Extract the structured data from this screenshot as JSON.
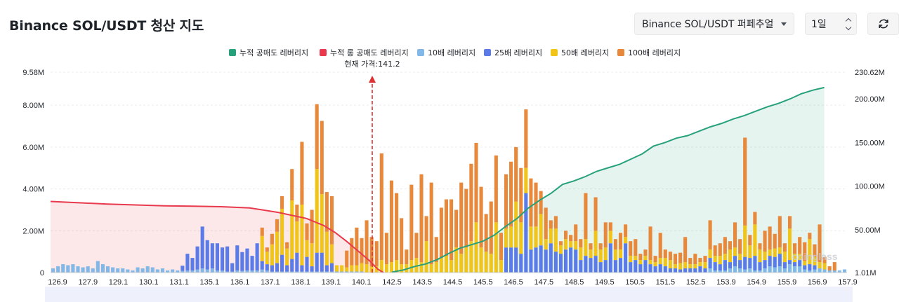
{
  "header": {
    "title": "Binance SOL/USDT 청산 지도",
    "exchange_select": "Binance SOL/USDT 퍼페추얼",
    "interval_select": "1일",
    "refresh_icon": "refresh-icon"
  },
  "colors": {
    "short_cum": "#26a17b",
    "long_cum": "#e8394d",
    "lev10": "#82b8e8",
    "lev25": "#5b7be8",
    "lev50": "#f0c419",
    "lev100": "#e8883a",
    "current_price": "#e03131"
  },
  "chart_data": {
    "type": "bar",
    "title": "",
    "current_price_label": "현재 가격:141.2",
    "current_price": 141.2,
    "watermark": "coinglass",
    "legend": [
      {
        "key": "short_cum",
        "label": "누적 공매도 레버리지"
      },
      {
        "key": "long_cum",
        "label": "누적 롱 공매도 레버리지"
      },
      {
        "key": "lev10",
        "label": "10배 레버리지"
      },
      {
        "key": "lev25",
        "label": "25배 레버리지"
      },
      {
        "key": "lev50",
        "label": "50배 레버리지"
      },
      {
        "key": "lev100",
        "label": "100배 레버리지"
      }
    ],
    "x_tick_labels": [
      "126.9",
      "127.9",
      "129.1",
      "130.1",
      "131.1",
      "135.1",
      "136.1",
      "137.1",
      "138.1",
      "139.1",
      "140.1",
      "142.5",
      "143.5",
      "144.5",
      "145.5",
      "146.5",
      "147.5",
      "148.5",
      "149.5",
      "150.5",
      "151.5",
      "152.5",
      "153.9",
      "154.9",
      "155.9",
      "156.9",
      "157.9"
    ],
    "y_left": {
      "ticks": [
        "0",
        "2.00M",
        "4.00M",
        "6.00M",
        "8.00M",
        "9.58M"
      ],
      "max": 9.58
    },
    "y_right": {
      "ticks": [
        "1.01M",
        "50.00M",
        "100.00M",
        "150.00M",
        "200.00M",
        "230.62M"
      ],
      "min": 1.01,
      "max": 230.62
    },
    "series": [
      {
        "name": "10배 레버리지",
        "values": [
          0.2,
          0.3,
          0.4,
          0.35,
          0.4,
          0.3,
          0.25,
          0.3,
          0.2,
          0.55,
          0.4,
          0.3,
          0.25,
          0.2,
          0.2,
          0.15,
          0.1,
          0.25,
          0.2,
          0.3,
          0.25,
          0.15,
          0.2,
          0.1,
          0.15,
          0.1,
          0.08,
          0.1,
          0.1,
          0.15,
          0.2,
          0.15,
          0.2,
          0.1,
          0.1,
          0.05,
          0.05,
          0.1,
          0.08,
          0.1,
          0.1,
          0.1,
          0.15,
          0.1,
          0.05,
          0.05,
          0.05,
          0.05,
          0.05,
          0.05,
          0.05,
          0.05,
          0.05,
          0.05,
          0.05,
          0.05,
          0.05,
          0.05,
          0.05,
          0.05,
          0.05,
          0.05,
          0.05,
          0,
          0,
          0,
          0,
          0,
          0,
          0,
          0,
          0,
          0,
          0,
          0,
          0,
          0,
          0,
          0,
          0,
          0,
          0,
          0,
          0,
          0,
          0,
          0,
          0,
          0,
          0,
          0,
          0,
          0,
          0,
          0,
          0,
          0,
          0,
          0,
          0,
          0,
          0,
          0,
          0,
          0,
          0,
          0,
          0,
          0,
          0,
          0,
          0,
          0,
          0,
          0,
          0,
          0,
          0,
          0,
          0,
          0,
          0,
          0,
          0,
          0,
          0,
          0,
          0,
          0,
          0,
          0,
          0,
          0.2,
          0.1,
          0.1,
          0.1,
          0.2,
          0.3,
          0.2,
          0.15,
          0.2,
          0.1,
          0.1,
          0.2,
          0.3,
          0.25,
          0.3,
          0.2,
          0.4,
          0.3,
          0.3,
          0.15,
          0.1,
          0.15,
          0.2,
          0.15,
          0.1,
          0.1,
          0.1,
          0.15
        ]
      },
      {
        "name": "25배 레버리지",
        "values": [
          0,
          0,
          0,
          0,
          0,
          0,
          0,
          0,
          0,
          0,
          0,
          0,
          0,
          0,
          0,
          0,
          0,
          0,
          0,
          0,
          0,
          0,
          0,
          0,
          0,
          0,
          0.25,
          0.8,
          0.6,
          1.1,
          2.0,
          1.4,
          1.2,
          1.3,
          1.1,
          1.2,
          0.4,
          1.2,
          0.9,
          1.05,
          0.7,
          1.3,
          0.4,
          0.3,
          0.3,
          0.4,
          0.8,
          0.3,
          0.6,
          0.9,
          0.3,
          0.7,
          0.25,
          0.9,
          0.9,
          0.3,
          0.4,
          0,
          0,
          0,
          0,
          0,
          0,
          0,
          0,
          0,
          0,
          0,
          0,
          0,
          0,
          0,
          0,
          0,
          0,
          0,
          0,
          0,
          0,
          0,
          0,
          0,
          0,
          0,
          0,
          0,
          0,
          0,
          0,
          0,
          0,
          1.2,
          1.2,
          1.2,
          0.9,
          3.8,
          1.1,
          1.2,
          1.3,
          1.1,
          1.4,
          1.0,
          0.9,
          1.1,
          1.2,
          1.1,
          0.6,
          0.8,
          0.7,
          0.8,
          0.5,
          0.6,
          1.4,
          0.6,
          0.7,
          1.4,
          0.5,
          0.6,
          0.4,
          0.6,
          0.4,
          0.3,
          0.4,
          0.3,
          0.2,
          0.2,
          0.15,
          0.2,
          0.2,
          0.2,
          0.3,
          0.2,
          0.5,
          0.4,
          0.3,
          0.5,
          0.3,
          0.5,
          0.4,
          0.6,
          0.5,
          0.7,
          0.4,
          0.4,
          0.5,
          0.5,
          0.6,
          0.3,
          0.2,
          0.2,
          0.3,
          0.2,
          0.3,
          0.2
        ]
      },
      {
        "name": "50배 레버리지",
        "values": [
          0,
          0,
          0,
          0,
          0,
          0,
          0,
          0,
          0,
          0,
          0,
          0,
          0,
          0,
          0,
          0,
          0,
          0,
          0,
          0,
          0,
          0,
          0,
          0,
          0,
          0,
          0,
          0,
          0,
          0,
          0,
          0,
          0,
          0,
          0,
          0,
          0,
          0,
          0,
          0,
          0,
          0,
          1.2,
          0.6,
          1.0,
          1.5,
          2.2,
          0.8,
          2.8,
          1.5,
          2.9,
          0.8,
          1.1,
          4.0,
          2.8,
          1.6,
          0.9,
          0.3,
          0.3,
          0.2,
          0.3,
          0.3,
          0.4,
          0.4,
          0.3,
          0.3,
          0.6,
          0.4,
          0.5,
          0.6,
          0.4,
          0.4,
          0.6,
          0.7,
          0.5,
          1.5,
          0.4,
          0.5,
          0.7,
          0.8,
          0.6,
          1.2,
          0.9,
          1.2,
          1.5,
          2.4,
          1.2,
          1.0,
          0.9,
          2.4,
          0.6,
          0.9,
          1.0,
          2.2,
          1.5,
          1.2,
          1.1,
          1.0,
          1.5,
          0.5,
          0.7,
          1.1,
          0.4,
          0.5,
          0.3,
          0.4,
          0.6,
          0.8,
          0.4,
          1.2,
          0.6,
          0.6,
          0.6,
          0.5,
          0.4,
          0.3,
          0.3,
          0.2,
          0.2,
          0.2,
          0.2,
          0.2,
          0.3,
          0.4,
          0.4,
          0.2,
          0.3,
          0.3,
          0.2,
          0.2,
          0.2,
          0.3,
          0.4,
          0.3,
          0.4,
          0.3,
          0.6,
          0.4,
          0.3,
          1.5,
          0.6,
          1.5,
          0.6,
          0.4,
          0.3,
          0.4,
          0.3,
          0.5,
          1.5,
          0.4,
          0.3,
          0.2,
          1.2,
          0.4,
          0.3,
          0.3
        ]
      },
      {
        "name": "100배 레버리지",
        "values": [
          0,
          0,
          0,
          0,
          0,
          0,
          0,
          0,
          0,
          0,
          0,
          0,
          0,
          0,
          0,
          0,
          0,
          0,
          0,
          0,
          0,
          0,
          0,
          0,
          0,
          0,
          0,
          0,
          0,
          0,
          0,
          0,
          0,
          0,
          0,
          0,
          0,
          0,
          0,
          0,
          0,
          0,
          0.4,
          0.2,
          0.5,
          0.6,
          0.6,
          0.3,
          1.5,
          0.8,
          3.0,
          0.8,
          1.6,
          3.1,
          3.5,
          1.9,
          2.3,
          0,
          0,
          0.8,
          1.3,
          1.8,
          1.2,
          2.1,
          1.4,
          1.2,
          5.1,
          1.5,
          3.9,
          3.2,
          2.2,
          0.7,
          3.6,
          1.2,
          4.2,
          1.2,
          3.9,
          1.2,
          2.4,
          2.7,
          2.9,
          1.8,
          3.4,
          2.8,
          3.7,
          3.8,
          2.9,
          1.8,
          2.5,
          3.2,
          1.3,
          2.6,
          3.1,
          2.6,
          2.6,
          2.8,
          2.3,
          2.1,
          1.1,
          1.5,
          0.4,
          0.6,
          0.2,
          0.4,
          0.3,
          0.8,
          0.4,
          2.2,
          0.3,
          1.6,
          0.3,
          1.2,
          0.4,
          0.5,
          0.8,
          0.6,
          0.7,
          0.8,
          0.3,
          0.3,
          1.6,
          0.3,
          1.2,
          0.4,
          0.4,
          0.5,
          0.5,
          1.2,
          0.3,
          0.5,
          0.2,
          0.3,
          1.4,
          0.5,
          0.6,
          0.8,
          0.4,
          1.2,
          0.7,
          4.2,
          0.5,
          0.6,
          0.3,
          1.0,
          1.1,
          0.7,
          1.5,
          0.4,
          0.6,
          0.5,
          0.8,
          0.9,
          0.3,
          0.6,
          1.8,
          0.3,
          0.2,
          0.4
        ]
      },
      {
        "name": "누적 롱 공매도 레버리지",
        "axis": "right",
        "points": [
          [
            0,
            82.5
          ],
          [
            0.05,
            81
          ],
          [
            0.1,
            79.5
          ],
          [
            0.15,
            78.5
          ],
          [
            0.2,
            77.5
          ],
          [
            0.25,
            77
          ],
          [
            0.3,
            76.5
          ],
          [
            0.35,
            75
          ],
          [
            0.4,
            70
          ],
          [
            0.45,
            63
          ],
          [
            0.48,
            55
          ],
          [
            0.5,
            47
          ],
          [
            0.52,
            37
          ],
          [
            0.54,
            26
          ],
          [
            0.56,
            15
          ],
          [
            0.575,
            5
          ],
          [
            0.585,
            1
          ]
        ]
      },
      {
        "name": "누적 공매도 레버리지",
        "axis": "right",
        "points": [
          [
            0.6,
            1.5
          ],
          [
            0.62,
            4
          ],
          [
            0.64,
            8
          ],
          [
            0.66,
            11
          ],
          [
            0.68,
            16
          ],
          [
            0.7,
            23
          ],
          [
            0.72,
            29
          ],
          [
            0.74,
            33
          ],
          [
            0.76,
            37
          ],
          [
            0.78,
            44
          ],
          [
            0.8,
            54
          ],
          [
            0.82,
            63
          ],
          [
            0.84,
            75
          ],
          [
            0.86,
            84
          ],
          [
            0.88,
            92
          ],
          [
            0.9,
            102
          ],
          [
            0.92,
            106
          ],
          [
            0.94,
            111
          ],
          [
            0.96,
            117
          ],
          [
            0.98,
            121
          ],
          [
            1.0,
            125
          ],
          [
            1.02,
            131
          ],
          [
            1.04,
            137
          ],
          [
            1.06,
            146
          ],
          [
            1.08,
            150
          ],
          [
            1.1,
            155
          ],
          [
            1.12,
            158
          ],
          [
            1.14,
            163
          ],
          [
            1.16,
            168
          ],
          [
            1.18,
            172
          ],
          [
            1.2,
            177
          ],
          [
            1.22,
            181
          ],
          [
            1.24,
            186
          ],
          [
            1.26,
            191
          ],
          [
            1.28,
            195
          ],
          [
            1.3,
            200
          ],
          [
            1.32,
            206
          ],
          [
            1.34,
            210
          ],
          [
            1.36,
            213
          ]
        ]
      }
    ]
  }
}
